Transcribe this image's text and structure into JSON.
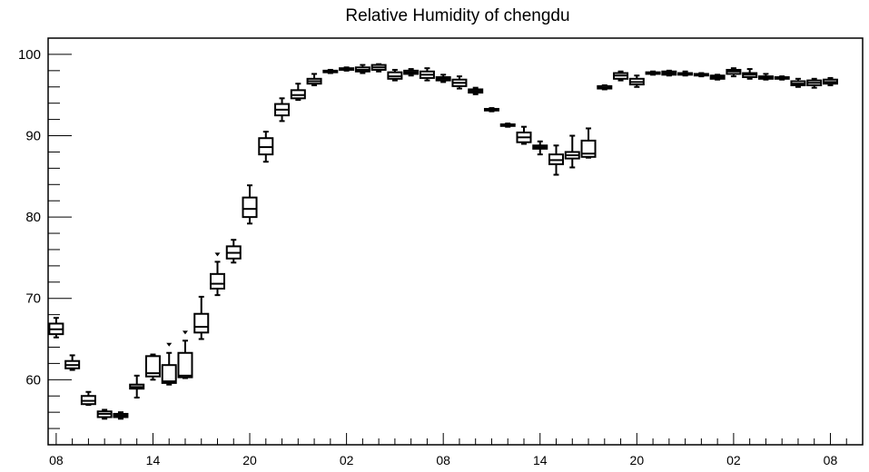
{
  "chart_data": {
    "type": "box",
    "title": "Relative Humidity of chengdu",
    "xlabel": "",
    "ylabel": "",
    "ylim": [
      52,
      102
    ],
    "xlim": [
      -0.5,
      50
    ],
    "y_ticks": [
      60,
      70,
      80,
      90,
      100
    ],
    "x_ticks": [
      {
        "label": "08",
        "x": 0
      },
      {
        "label": "14",
        "x": 6
      },
      {
        "label": "20",
        "x": 12
      },
      {
        "label": "02",
        "x": 18
      },
      {
        "label": "08",
        "x": 24
      },
      {
        "label": "14",
        "x": 30
      },
      {
        "label": "20",
        "x": 36
      },
      {
        "label": "02",
        "x": 42
      },
      {
        "label": "08",
        "x": 48
      }
    ],
    "boxes": [
      {
        "x": 0,
        "min": 65.2,
        "q1": 65.6,
        "median": 66.2,
        "q3": 66.9,
        "max": 67.6,
        "outliers": []
      },
      {
        "x": 1,
        "min": 61.2,
        "q1": 61.4,
        "median": 61.8,
        "q3": 62.3,
        "max": 63.0,
        "outliers": []
      },
      {
        "x": 2,
        "min": 56.9,
        "q1": 57.0,
        "median": 57.4,
        "q3": 58.0,
        "max": 58.5,
        "outliers": []
      },
      {
        "x": 3,
        "min": 55.2,
        "q1": 55.4,
        "median": 55.8,
        "q3": 56.1,
        "max": 56.3,
        "outliers": []
      },
      {
        "x": 4,
        "min": 55.2,
        "q1": 55.4,
        "median": 55.6,
        "q3": 55.8,
        "max": 56.0,
        "outliers": []
      },
      {
        "x": 5,
        "min": 57.8,
        "q1": 58.9,
        "median": 59.1,
        "q3": 59.4,
        "max": 60.5,
        "outliers": []
      },
      {
        "x": 6,
        "min": 60.0,
        "q1": 60.4,
        "median": 60.8,
        "q3": 62.9,
        "max": 63.1,
        "outliers": []
      },
      {
        "x": 7,
        "min": 59.4,
        "q1": 59.6,
        "median": 59.8,
        "q3": 61.8,
        "max": 63.3,
        "outliers": [
          64.3
        ]
      },
      {
        "x": 8,
        "min": 60.2,
        "q1": 60.3,
        "median": 60.5,
        "q3": 63.3,
        "max": 64.8,
        "outliers": [
          65.8
        ]
      },
      {
        "x": 9,
        "min": 65.0,
        "q1": 65.8,
        "median": 66.5,
        "q3": 68.1,
        "max": 70.2,
        "outliers": []
      },
      {
        "x": 10,
        "min": 70.4,
        "q1": 71.2,
        "median": 71.8,
        "q3": 73.0,
        "max": 74.5,
        "outliers": [
          75.4
        ]
      },
      {
        "x": 11,
        "min": 74.4,
        "q1": 74.9,
        "median": 75.6,
        "q3": 76.4,
        "max": 77.2,
        "outliers": []
      },
      {
        "x": 12,
        "min": 79.2,
        "q1": 80.0,
        "median": 81.0,
        "q3": 82.4,
        "max": 83.9,
        "outliers": []
      },
      {
        "x": 13,
        "min": 86.8,
        "q1": 87.7,
        "median": 88.6,
        "q3": 89.7,
        "max": 90.5,
        "outliers": []
      },
      {
        "x": 14,
        "min": 91.8,
        "q1": 92.5,
        "median": 93.2,
        "q3": 93.9,
        "max": 94.6,
        "outliers": []
      },
      {
        "x": 15,
        "min": 94.4,
        "q1": 94.6,
        "median": 95.0,
        "q3": 95.6,
        "max": 96.4,
        "outliers": []
      },
      {
        "x": 16,
        "min": 96.2,
        "q1": 96.4,
        "median": 96.7,
        "q3": 97.0,
        "max": 97.6,
        "outliers": []
      },
      {
        "x": 17,
        "min": 97.7,
        "q1": 97.8,
        "median": 97.9,
        "q3": 98.0,
        "max": 98.1,
        "outliers": []
      },
      {
        "x": 18,
        "min": 98.0,
        "q1": 98.1,
        "median": 98.2,
        "q3": 98.3,
        "max": 98.4,
        "outliers": []
      },
      {
        "x": 19,
        "min": 97.7,
        "q1": 97.9,
        "median": 98.1,
        "q3": 98.4,
        "max": 98.7,
        "outliers": []
      },
      {
        "x": 20,
        "min": 97.9,
        "q1": 98.1,
        "median": 98.4,
        "q3": 98.7,
        "max": 98.8,
        "outliers": []
      },
      {
        "x": 21,
        "min": 96.8,
        "q1": 97.0,
        "median": 97.3,
        "q3": 97.8,
        "max": 98.1,
        "outliers": []
      },
      {
        "x": 22,
        "min": 97.4,
        "q1": 97.6,
        "median": 97.8,
        "q3": 98.0,
        "max": 98.2,
        "outliers": []
      },
      {
        "x": 23,
        "min": 96.8,
        "q1": 97.1,
        "median": 97.5,
        "q3": 97.9,
        "max": 98.3,
        "outliers": []
      },
      {
        "x": 24,
        "min": 96.6,
        "q1": 96.8,
        "median": 97.0,
        "q3": 97.2,
        "max": 97.5,
        "outliers": []
      },
      {
        "x": 25,
        "min": 95.8,
        "q1": 96.1,
        "median": 96.5,
        "q3": 96.9,
        "max": 97.3,
        "outliers": []
      },
      {
        "x": 26,
        "min": 95.1,
        "q1": 95.3,
        "median": 95.5,
        "q3": 95.7,
        "max": 95.9,
        "outliers": []
      },
      {
        "x": 27,
        "min": 93.0,
        "q1": 93.1,
        "median": 93.2,
        "q3": 93.3,
        "max": 93.4,
        "outliers": []
      },
      {
        "x": 28,
        "min": 91.1,
        "q1": 91.2,
        "median": 91.3,
        "q3": 91.4,
        "max": 91.5,
        "outliers": []
      },
      {
        "x": 29,
        "min": 89.0,
        "q1": 89.2,
        "median": 89.8,
        "q3": 90.4,
        "max": 91.1,
        "outliers": []
      },
      {
        "x": 30,
        "min": 87.7,
        "q1": 88.4,
        "median": 88.6,
        "q3": 88.8,
        "max": 89.3,
        "outliers": []
      },
      {
        "x": 31,
        "min": 85.2,
        "q1": 86.5,
        "median": 87.0,
        "q3": 87.7,
        "max": 88.8,
        "outliers": []
      },
      {
        "x": 32,
        "min": 86.1,
        "q1": 87.2,
        "median": 87.6,
        "q3": 88.0,
        "max": 90.0,
        "outliers": []
      },
      {
        "x": 33,
        "min": 87.3,
        "q1": 87.4,
        "median": 87.8,
        "q3": 89.4,
        "max": 90.9,
        "outliers": []
      },
      {
        "x": 34,
        "min": 95.7,
        "q1": 95.8,
        "median": 95.9,
        "q3": 96.1,
        "max": 96.2,
        "outliers": []
      },
      {
        "x": 35,
        "min": 96.8,
        "q1": 97.0,
        "median": 97.4,
        "q3": 97.7,
        "max": 97.9,
        "outliers": []
      },
      {
        "x": 36,
        "min": 96.0,
        "q1": 96.3,
        "median": 96.6,
        "q3": 97.0,
        "max": 97.4,
        "outliers": []
      },
      {
        "x": 37,
        "min": 97.5,
        "q1": 97.6,
        "median": 97.7,
        "q3": 97.8,
        "max": 97.9,
        "outliers": []
      },
      {
        "x": 38,
        "min": 97.4,
        "q1": 97.5,
        "median": 97.7,
        "q3": 97.9,
        "max": 98.0,
        "outliers": []
      },
      {
        "x": 39,
        "min": 97.4,
        "q1": 97.5,
        "median": 97.6,
        "q3": 97.7,
        "max": 97.9,
        "outliers": []
      },
      {
        "x": 40,
        "min": 97.3,
        "q1": 97.4,
        "median": 97.5,
        "q3": 97.6,
        "max": 97.7,
        "outliers": []
      },
      {
        "x": 41,
        "min": 96.9,
        "q1": 97.0,
        "median": 97.2,
        "q3": 97.4,
        "max": 97.5,
        "outliers": []
      },
      {
        "x": 42,
        "min": 97.3,
        "q1": 97.6,
        "median": 97.9,
        "q3": 98.1,
        "max": 98.3,
        "outliers": []
      },
      {
        "x": 43,
        "min": 97.0,
        "q1": 97.2,
        "median": 97.5,
        "q3": 97.7,
        "max": 98.2,
        "outliers": []
      },
      {
        "x": 44,
        "min": 96.9,
        "q1": 97.0,
        "median": 97.2,
        "q3": 97.3,
        "max": 97.6,
        "outliers": []
      },
      {
        "x": 45,
        "min": 96.9,
        "q1": 97.0,
        "median": 97.1,
        "q3": 97.2,
        "max": 97.3,
        "outliers": []
      },
      {
        "x": 46,
        "min": 96.0,
        "q1": 96.2,
        "median": 96.4,
        "q3": 96.7,
        "max": 97.0,
        "outliers": []
      },
      {
        "x": 47,
        "min": 95.9,
        "q1": 96.2,
        "median": 96.5,
        "q3": 96.8,
        "max": 97.0,
        "outliers": []
      },
      {
        "x": 48,
        "min": 96.2,
        "q1": 96.4,
        "median": 96.6,
        "q3": 96.9,
        "max": 97.1,
        "outliers": []
      }
    ],
    "grid": false,
    "legend": "none",
    "colors": {
      "stroke": "#000000",
      "background": "#ffffff"
    }
  }
}
